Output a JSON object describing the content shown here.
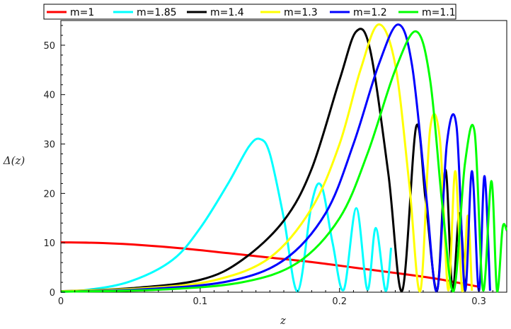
{
  "chart_data": {
    "type": "line",
    "title": "",
    "xlabel": "z",
    "ylabel": "Δ(z)",
    "xlim": [
      0,
      0.32
    ],
    "ylim": [
      0,
      55
    ],
    "x_ticks": [
      0,
      0.1,
      0.2,
      0.3
    ],
    "x_tick_labels": [
      "0",
      "0.1",
      "0.2",
      "0.3"
    ],
    "y_ticks": [
      0,
      10,
      20,
      30,
      40,
      50
    ],
    "y_tick_labels": [
      "0",
      "10",
      "20",
      "30",
      "40",
      "50"
    ],
    "grid": false,
    "legend_position": "top",
    "series": [
      {
        "name": "m=1",
        "color": "#ff0000",
        "x": [
          0,
          0.03,
          0.06,
          0.09,
          0.12,
          0.15,
          0.18,
          0.21,
          0.24,
          0.27,
          0.3
        ],
        "y": [
          10.1,
          9.95,
          9.5,
          8.8,
          7.9,
          7.0,
          6.1,
          5.0,
          3.9,
          2.7,
          1.1
        ]
      },
      {
        "name": "m=1.85",
        "color": "#00ffff",
        "x": [
          0,
          0.02,
          0.05,
          0.08,
          0.1,
          0.12,
          0.135,
          0.143,
          0.15,
          0.16,
          0.17,
          0.18,
          0.187,
          0.195,
          0.203,
          0.212,
          0.22,
          0.226,
          0.233,
          0.237
        ],
        "y": [
          0.1,
          0.5,
          2.2,
          6.5,
          13.0,
          22.0,
          29.5,
          31.0,
          28.0,
          15.0,
          0.2,
          18.0,
          21.5,
          10.0,
          0.5,
          17.0,
          0.5,
          13.0,
          0.3,
          9.0
        ]
      },
      {
        "name": "m=1.4",
        "color": "#000000",
        "x": [
          0,
          0.05,
          0.1,
          0.13,
          0.16,
          0.18,
          0.2,
          0.212,
          0.222,
          0.235,
          0.245,
          0.255,
          0.262,
          0.27,
          0.276,
          0.281,
          0.286,
          0.29
        ],
        "y": [
          0.2,
          0.8,
          2.5,
          6.5,
          14.5,
          25.0,
          43.0,
          52.8,
          49.0,
          24.0,
          0.3,
          33.5,
          18.0,
          0.4,
          24.8,
          0.3,
          16.0,
          0.3
        ]
      },
      {
        "name": "m=1.3",
        "color": "#ffff00",
        "x": [
          0,
          0.06,
          0.11,
          0.15,
          0.18,
          0.2,
          0.215,
          0.228,
          0.24,
          0.25,
          0.258,
          0.265,
          0.272,
          0.278,
          0.283,
          0.288,
          0.292,
          0.295
        ],
        "y": [
          0.2,
          0.8,
          2.4,
          7.0,
          17.0,
          30.0,
          45.0,
          54.2,
          46.0,
          22.0,
          0.3,
          33.0,
          31.0,
          0.4,
          24.5,
          0.3,
          15.5,
          0.3
        ]
      },
      {
        "name": "m=1.2",
        "color": "#0000ff",
        "x": [
          0,
          0.06,
          0.12,
          0.16,
          0.19,
          0.21,
          0.228,
          0.242,
          0.252,
          0.262,
          0.27,
          0.277,
          0.284,
          0.29,
          0.295,
          0.3,
          0.304,
          0.308
        ],
        "y": [
          0.1,
          0.6,
          2.2,
          6.5,
          16.0,
          30.0,
          46.0,
          54.2,
          46.0,
          20.0,
          0.3,
          30.0,
          33.5,
          0.4,
          24.5,
          0.3,
          23.5,
          0.3
        ]
      },
      {
        "name": "m=1.1",
        "color": "#00ff00",
        "x": [
          0,
          0.07,
          0.13,
          0.17,
          0.2,
          0.22,
          0.24,
          0.255,
          0.265,
          0.274,
          0.282,
          0.29,
          0.297,
          0.303,
          0.309,
          0.313,
          0.317,
          0.32
        ],
        "y": [
          0.1,
          0.5,
          2.0,
          6.0,
          15.0,
          28.0,
          45.0,
          52.8,
          43.0,
          17.0,
          0.3,
          26.0,
          32.3,
          0.4,
          22.5,
          0.3,
          13.0,
          12.5
        ]
      }
    ]
  }
}
